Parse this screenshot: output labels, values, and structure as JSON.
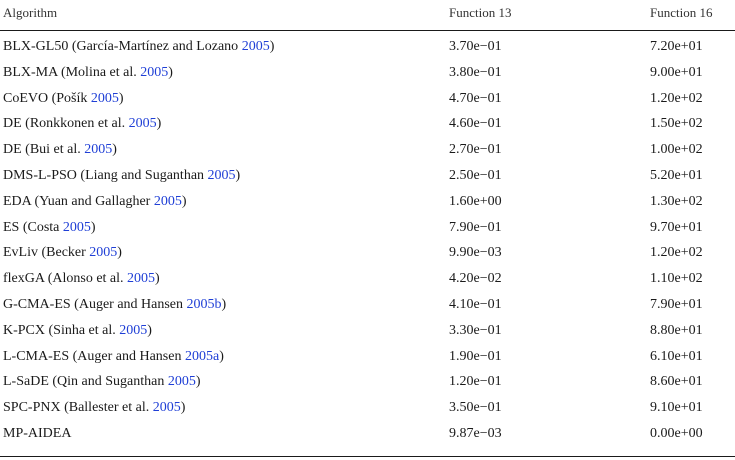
{
  "table": {
    "headers": [
      "Algorithm",
      "Function 13",
      "Function 16"
    ],
    "rows": [
      {
        "name": "BLX-GL50 (García-Martínez and Lozano ",
        "cite": "2005",
        "close": ")",
        "f13": "3.70e−01",
        "f16": "7.20e+01"
      },
      {
        "name": "BLX-MA (Molina et al. ",
        "cite": "2005",
        "close": ")",
        "f13": "3.80e−01",
        "f16": "9.00e+01"
      },
      {
        "name": "CoEVO (Pošík ",
        "cite": "2005",
        "close": ")",
        "f13": "4.70e−01",
        "f16": "1.20e+02"
      },
      {
        "name": "DE (Ronkkonen et al. ",
        "cite": "2005",
        "close": ")",
        "f13": "4.60e−01",
        "f16": "1.50e+02"
      },
      {
        "name": "DE (Bui et al. ",
        "cite": "2005",
        "close": ")",
        "f13": "2.70e−01",
        "f16": "1.00e+02"
      },
      {
        "name": "DMS-L-PSO (Liang and Suganthan ",
        "cite": "2005",
        "close": ")",
        "f13": "2.50e−01",
        "f16": "5.20e+01"
      },
      {
        "name": "EDA (Yuan and Gallagher ",
        "cite": "2005",
        "close": ")",
        "f13": "1.60e+00",
        "f16": "1.30e+02"
      },
      {
        "name": "ES (Costa ",
        "cite": "2005",
        "close": ")",
        "f13": "7.90e−01",
        "f16": "9.70e+01"
      },
      {
        "name": "EvLiv (Becker ",
        "cite": "2005",
        "close": ")",
        "f13": "9.90e−03",
        "f16": "1.20e+02"
      },
      {
        "name": "flexGA (Alonso et al. ",
        "cite": "2005",
        "close": ")",
        "f13": "4.20e−02",
        "f16": "1.10e+02"
      },
      {
        "name": "G-CMA-ES (Auger and Hansen ",
        "cite": "2005b",
        "close": ")",
        "f13": "4.10e−01",
        "f16": "7.90e+01"
      },
      {
        "name": "K-PCX (Sinha et al. ",
        "cite": "2005",
        "close": ")",
        "f13": "3.30e−01",
        "f16": "8.80e+01"
      },
      {
        "name": "L-CMA-ES (Auger and Hansen ",
        "cite": "2005a",
        "close": ")",
        "f13": "1.90e−01",
        "f16": "6.10e+01"
      },
      {
        "name": "L-SaDE (Qin and Suganthan ",
        "cite": "2005",
        "close": ")",
        "f13": "1.20e−01",
        "f16": "8.60e+01"
      },
      {
        "name": "SPC-PNX (Ballester et al. ",
        "cite": "2005",
        "close": ")",
        "f13": "3.50e−01",
        "f16": "9.10e+01"
      },
      {
        "name": "MP-AIDEA",
        "cite": "",
        "close": "",
        "f13": "9.87e−03",
        "f16": "0.00e+00"
      }
    ]
  }
}
